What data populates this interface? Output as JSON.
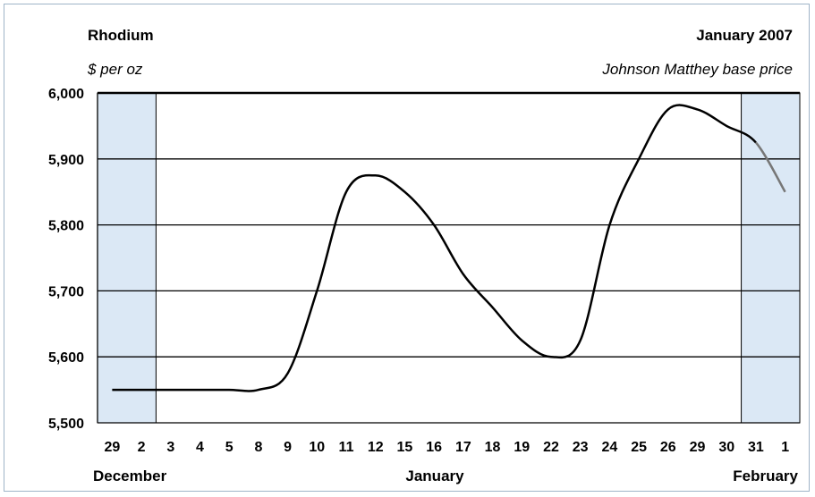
{
  "chart_data": {
    "type": "line",
    "title": "Rhodium",
    "ylabel": "$ per oz",
    "period": "January 2007",
    "note": "Johnson Matthey base price",
    "ylim": [
      5500,
      6000
    ],
    "yticks": [
      5500,
      5600,
      5700,
      5800,
      5900,
      6000
    ],
    "ytick_labels": [
      "5,500",
      "5,600",
      "5,700",
      "5,800",
      "5,900",
      "6,000"
    ],
    "grid": true,
    "categories": [
      "29",
      "2",
      "3",
      "4",
      "5",
      "8",
      "9",
      "10",
      "11",
      "12",
      "15",
      "16",
      "17",
      "18",
      "19",
      "22",
      "23",
      "24",
      "25",
      "26",
      "29",
      "30",
      "31",
      "1"
    ],
    "months": [
      "December",
      "January",
      "February"
    ],
    "series": [
      {
        "values": [
          5550,
          5550,
          5550,
          5550,
          5550,
          5550,
          5575,
          5700,
          5850,
          5875,
          5850,
          5800,
          5725,
          5675,
          5625,
          5600,
          5625,
          5800,
          5900,
          5975,
          5975,
          5950,
          5925,
          5850
        ],
        "color": "#000000",
        "highlight_color": "#777777"
      }
    ],
    "shaded_regions": [
      {
        "from": "29",
        "to": "2",
        "color": "#dbe8f5"
      },
      {
        "from": "31",
        "to": "1",
        "color": "#dbe8f5"
      }
    ]
  }
}
